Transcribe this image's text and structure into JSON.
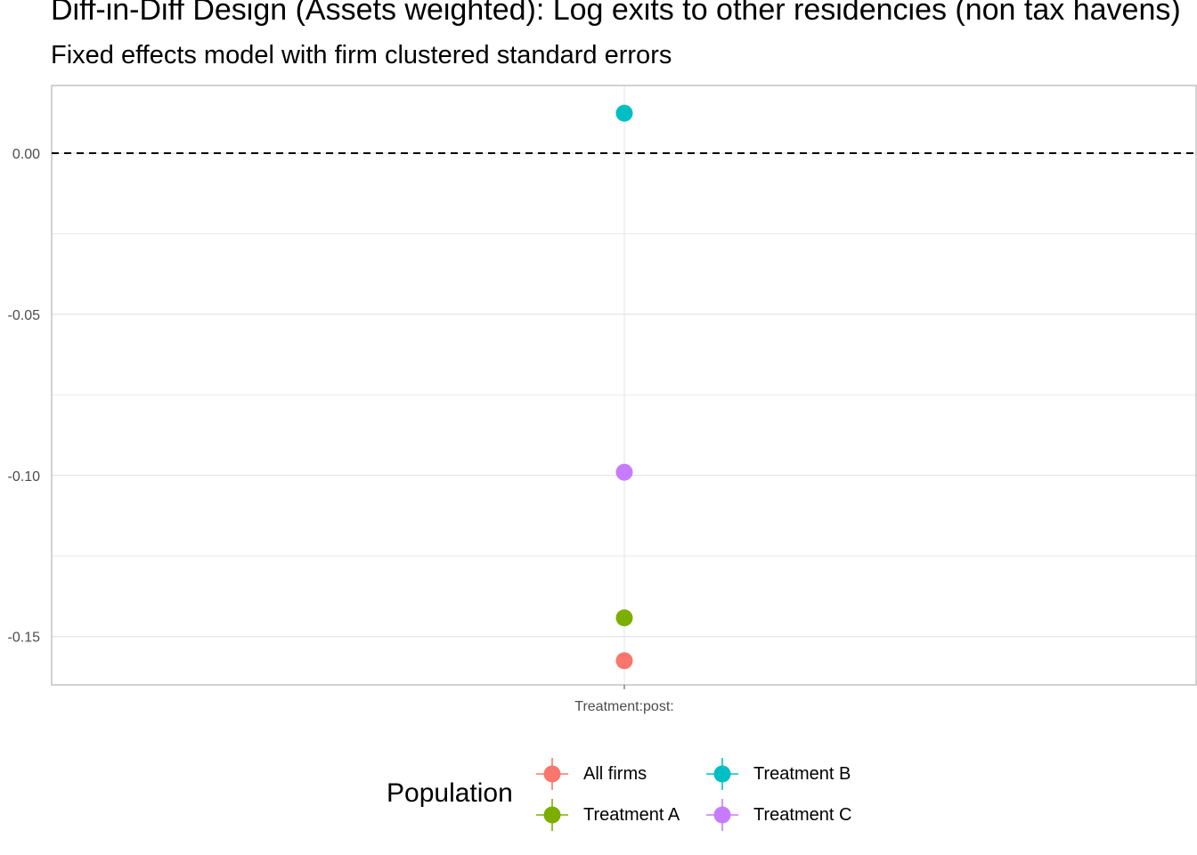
{
  "title": "Diff-in-Diff Design (Assets weighted): Log exits to other residencies (non tax havens)",
  "subtitle": "Fixed effects model with firm clustered standard errors",
  "chart_data": {
    "type": "scatter",
    "categories": [
      "Treatment:post:"
    ],
    "ylim": [
      -0.165,
      0.021
    ],
    "y_ticks": [
      0.0,
      -0.05,
      -0.1,
      -0.15
    ],
    "y_tick_labels": [
      "0.00",
      "-0.05",
      "-0.10",
      "-0.15"
    ],
    "reference_line": {
      "y": 0,
      "style": "dashed"
    },
    "grid": true,
    "legend_position": "bottom",
    "legend_title": "Population",
    "series": [
      {
        "name": "All firms",
        "color": "#F8766D",
        "values": [
          -0.1575
        ]
      },
      {
        "name": "Treatment A",
        "color": "#7CAE00",
        "values": [
          -0.1442
        ]
      },
      {
        "name": "Treatment B",
        "color": "#00BFC4",
        "values": [
          0.0124
        ]
      },
      {
        "name": "Treatment C",
        "color": "#C77CFF",
        "values": [
          -0.099
        ]
      }
    ]
  }
}
